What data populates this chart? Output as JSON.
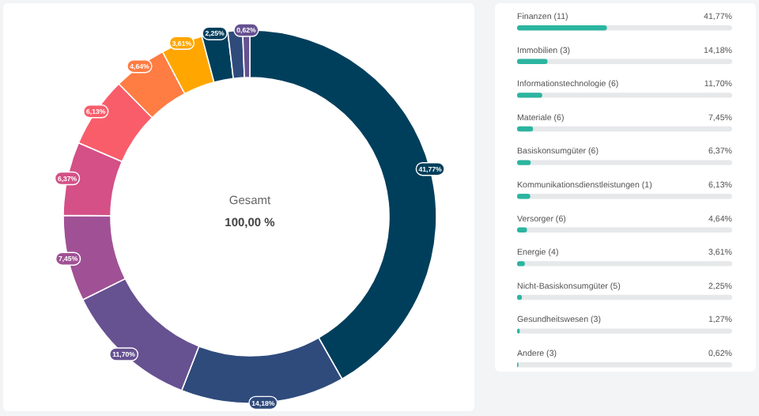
{
  "chart_data": [
    {
      "type": "donut",
      "categories": [
        null,
        null,
        null,
        null,
        null,
        null,
        null,
        null,
        null,
        null,
        null
      ],
      "values": [
        41.77,
        14.18,
        11.7,
        7.45,
        6.37,
        6.13,
        4.64,
        3.61,
        2.25,
        1.27,
        0.62
      ],
      "value_labels": [
        "41,77%",
        "14,18%",
        "11,70%",
        "7,45%",
        "6,37%",
        "6,13%",
        "4,64%",
        "3,61%",
        "2,25%",
        null,
        "0,62%"
      ],
      "colors": [
        "#003f5c",
        "#2f4b7c",
        "#665191",
        "#a05195",
        "#d45087",
        "#f95d6a",
        "#ff7c43",
        "#ffa600",
        "#003f5c",
        "#2f4b7c",
        "#665191"
      ],
      "annotations": [
        "Gesamt",
        "100,00 %"
      ]
    },
    {
      "type": "bar",
      "orientation": "horizontal",
      "categories": [
        "Finanzen (11)",
        "Immobilien (3)",
        "Informationstechnologie (6)",
        "Materiale (6)",
        "Basiskonsumgüter (6)",
        "Kommunikationsdienstleistungen (1)",
        "Versorger (6)",
        "Energie (4)",
        "Nicht-Basiskonsumgüter (5)",
        "Gesundheitswesen (3)",
        "Andere (3)"
      ],
      "values": [
        41.77,
        14.18,
        11.7,
        7.45,
        6.37,
        6.13,
        4.64,
        3.61,
        2.25,
        1.27,
        0.62
      ],
      "value_labels": [
        "41,77%",
        "14,18%",
        "11,70%",
        "7,45%",
        "6,37%",
        "6,13%",
        "4,64%",
        "3,61%",
        "2,25%",
        "1,27%",
        "0,62%"
      ],
      "color": "#2bb5a0",
      "xlim": [
        0,
        100
      ]
    }
  ]
}
